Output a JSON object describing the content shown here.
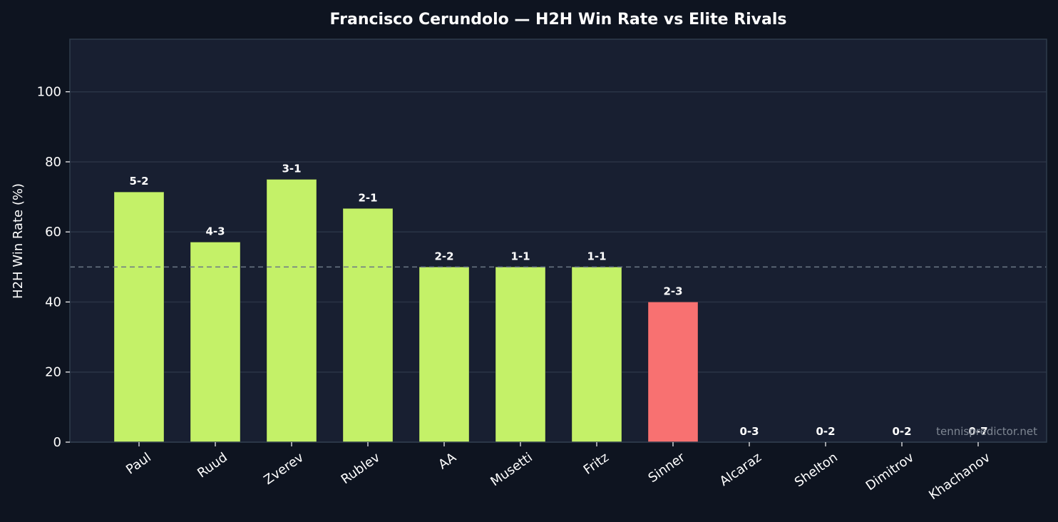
{
  "colors": {
    "figure_bg": "#0e1420",
    "plot_bg": "#181f31",
    "frame": "#2f3c4c",
    "grid": "#2a3446",
    "text": "#ffffff",
    "win": "#c4f168",
    "loss": "#f87171",
    "reference_line": "#6b7785",
    "watermark": "#7f8793"
  },
  "chart_data": {
    "type": "bar",
    "title": "Francisco Cerundolo — H2H Win Rate vs Elite Rivals",
    "xlabel": "",
    "ylabel": "H2H Win Rate (%)",
    "ylim": [
      0,
      115
    ],
    "yticks": [
      0,
      20,
      40,
      60,
      80,
      100
    ],
    "grid": true,
    "reference_line": 50,
    "categories": [
      "Paul",
      "Ruud",
      "Zverev",
      "Rublev",
      "AA",
      "Musetti",
      "Fritz",
      "Sinner",
      "Alcaraz",
      "Shelton",
      "Dimitrov",
      "Khachanov"
    ],
    "values": [
      71.4,
      57.1,
      75.0,
      66.7,
      50.0,
      50.0,
      50.0,
      40.0,
      0,
      0,
      0,
      0
    ],
    "labels": [
      "5-2",
      "4-3",
      "3-1",
      "2-1",
      "2-2",
      "1-1",
      "1-1",
      "2-3",
      "0-3",
      "0-2",
      "0-2",
      "0-7"
    ],
    "watermark": "tennispredictor.net"
  }
}
